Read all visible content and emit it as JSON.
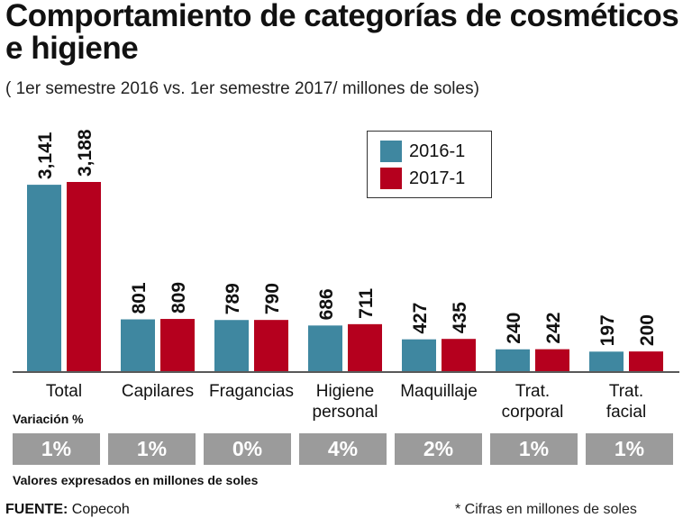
{
  "title": "Comportamiento de categorías de cosméticos e higiene",
  "subtitle": "( 1er semestre 2016 vs. 1er semestre 2017/ millones de soles)",
  "chart_data": {
    "type": "bar",
    "title": "Comportamiento de categorías de cosméticos e higiene",
    "subtitle": "( 1er semestre 2016 vs. 1er semestre 2017/ millones de soles)",
    "categories": [
      [
        "Total"
      ],
      [
        "Capilares"
      ],
      [
        "Fragancias"
      ],
      [
        "Higiene",
        "personal"
      ],
      [
        "Maquillaje"
      ],
      [
        "Trat.",
        "corporal"
      ],
      [
        "Trat.",
        "facial"
      ]
    ],
    "series": [
      {
        "name": "2016-1",
        "color": "#3f87a0",
        "values": [
          3141,
          801,
          789,
          686,
          427,
          240,
          197
        ],
        "labels": [
          "3,141",
          "801",
          "789",
          "686",
          "427",
          "240",
          "197"
        ]
      },
      {
        "name": "2017-1",
        "color": "#b5001e",
        "values": [
          3188,
          809,
          790,
          711,
          435,
          242,
          200
        ],
        "labels": [
          "3,188",
          "809",
          "790",
          "711",
          "435",
          "242",
          "200"
        ]
      }
    ],
    "legend_position": "top-right",
    "grid": false,
    "ylim": [
      0,
      3188
    ],
    "variation_label": "Variación %",
    "variation": [
      "1%",
      "1%",
      "0%",
      "4%",
      "2%",
      "1%",
      "1%"
    ],
    "variation_color": "#9b9b9b"
  },
  "note": "Valores expresados en millones de soles",
  "source_label": "FUENTE:",
  "source": "Copecoh",
  "footnote": "* Cifras en millones de soles"
}
